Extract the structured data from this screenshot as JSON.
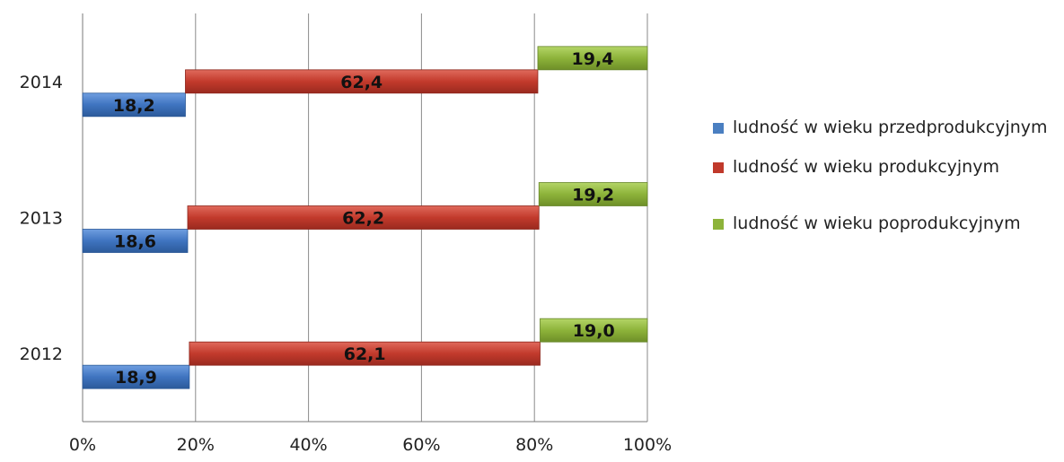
{
  "chart_data": {
    "type": "bar",
    "orientation": "horizontal",
    "stacked": "100%",
    "categories": [
      "2014",
      "2013",
      "2012"
    ],
    "series": [
      {
        "name": "ludność w wieku przedprodukcyjnym",
        "color": "#4a7fc1",
        "values": [
          18.2,
          18.6,
          18.9
        ],
        "labels": [
          "18,2",
          "18,6",
          "18,9"
        ]
      },
      {
        "name": "ludność w wieku produkcyjnym",
        "color": "#c0392b",
        "values": [
          62.4,
          62.2,
          62.1
        ],
        "labels": [
          "62,4",
          "62,2",
          "62,1"
        ]
      },
      {
        "name": "ludność w wieku poprodukcyjnym",
        "color": "#8db33a",
        "values": [
          19.4,
          19.2,
          19.0
        ],
        "labels": [
          "19,4",
          "19,2",
          "19,0"
        ]
      }
    ],
    "xticks": [
      "0%",
      "20%",
      "40%",
      "60%",
      "80%",
      "100%"
    ],
    "xlim": [
      0,
      100
    ],
    "grid": "vertical",
    "legend_position": "right"
  }
}
